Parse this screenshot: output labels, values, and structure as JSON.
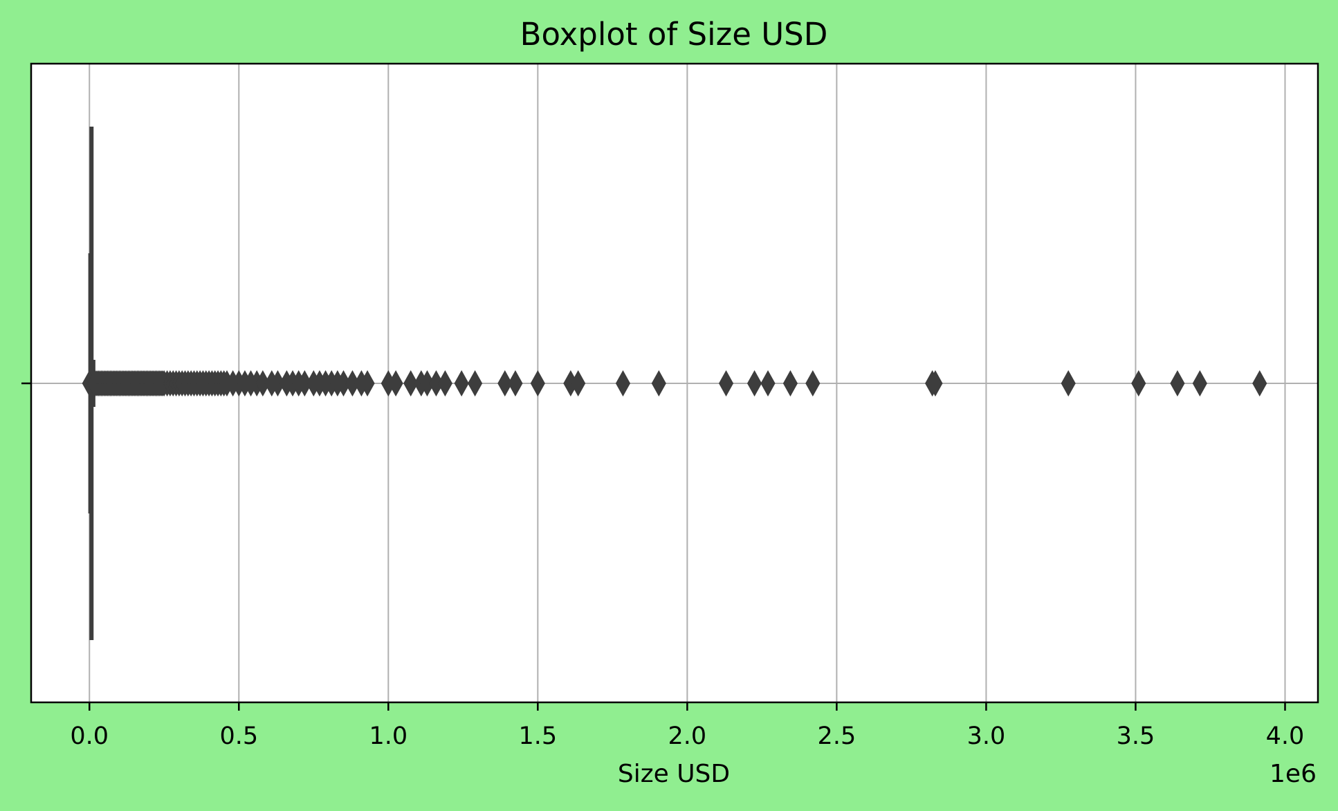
{
  "chart_data": {
    "type": "boxplot",
    "title": "Boxplot of Size USD",
    "xlabel": "Size USD",
    "ylabel": "",
    "axis_multiplier": "1e6",
    "x_scale_factor": 1000000,
    "xlim": [
      -0.195,
      4.11
    ],
    "x_ticks": [
      0.0,
      0.5,
      1.0,
      1.5,
      2.0,
      2.5,
      3.0,
      3.5,
      4.0
    ],
    "x_tick_labels": [
      "0.0",
      "0.5",
      "1.0",
      "1.5",
      "2.0",
      "2.5",
      "3.0",
      "3.5",
      "4.0"
    ],
    "grid": true,
    "orientation": "horizontal",
    "box_color": "#3d3d3d",
    "grid_color": "#b0b0b0",
    "background_color": "#90ee90",
    "box": {
      "min": 0.0,
      "q1": 0.0,
      "median": 0.002,
      "q3": 0.006,
      "max": 0.013
    },
    "outliers": [
      0.0,
      0.015,
      0.02,
      0.025,
      0.03,
      0.035,
      0.04,
      0.045,
      0.05,
      0.055,
      0.06,
      0.065,
      0.07,
      0.075,
      0.08,
      0.085,
      0.09,
      0.095,
      0.1,
      0.105,
      0.11,
      0.115,
      0.12,
      0.125,
      0.13,
      0.135,
      0.14,
      0.145,
      0.15,
      0.155,
      0.16,
      0.165,
      0.17,
      0.175,
      0.18,
      0.185,
      0.19,
      0.195,
      0.2,
      0.205,
      0.21,
      0.215,
      0.22,
      0.225,
      0.23,
      0.235,
      0.24,
      0.245,
      0.25,
      0.26,
      0.27,
      0.28,
      0.29,
      0.3,
      0.31,
      0.32,
      0.33,
      0.34,
      0.35,
      0.36,
      0.37,
      0.38,
      0.39,
      0.4,
      0.41,
      0.42,
      0.43,
      0.44,
      0.45,
      0.46,
      0.48,
      0.5,
      0.52,
      0.54,
      0.56,
      0.58,
      0.61,
      0.63,
      0.66,
      0.68,
      0.7,
      0.72,
      0.75,
      0.77,
      0.79,
      0.81,
      0.83,
      0.85,
      0.88,
      0.91,
      0.93,
      1.0,
      1.025,
      1.075,
      1.11,
      1.13,
      1.16,
      1.19,
      1.245,
      1.29,
      1.39,
      1.425,
      1.5,
      1.61,
      1.635,
      1.785,
      1.905,
      2.13,
      2.225,
      2.27,
      2.345,
      2.42,
      2.82,
      2.83,
      3.275,
      3.51,
      3.64,
      3.715,
      3.915
    ]
  }
}
